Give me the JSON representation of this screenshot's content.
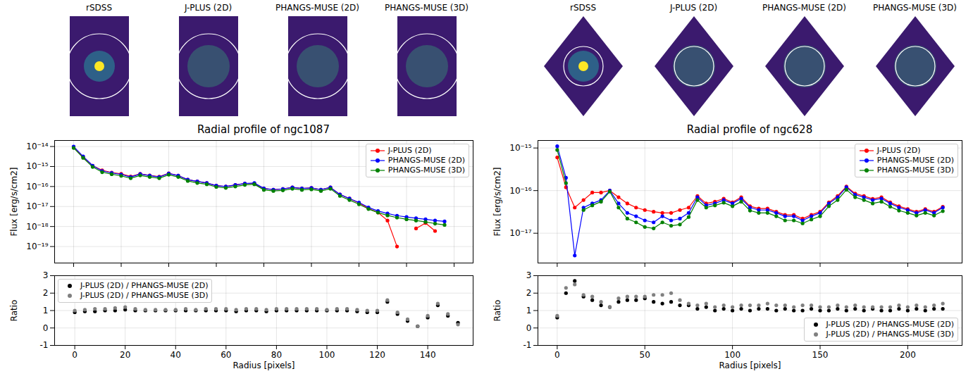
{
  "image_titles": [
    [
      "rSDSS",
      "J-PLUS (2D)",
      "PHANGS-MUSE (2D)",
      "PHANGS-MUSE (3D)"
    ],
    [
      "rSDSS",
      "J-PLUS (2D)",
      "PHANGS-MUSE (2D)",
      "PHANGS-MUSE (3D)"
    ]
  ],
  "chart_data": [
    {
      "type": "line",
      "title": "Radial profile of ngc1087",
      "ylabel": "Flux [erg/s/cm2]",
      "x": [
        0,
        4,
        8,
        12,
        16,
        20,
        24,
        28,
        32,
        36,
        40,
        44,
        48,
        52,
        56,
        60,
        64,
        68,
        72,
        76,
        80,
        84,
        88,
        92,
        96,
        100,
        104,
        108,
        112,
        116,
        120,
        124,
        128,
        132,
        136,
        140,
        144,
        148,
        152,
        156
      ],
      "xlim": [
        -8,
        168
      ],
      "xticks": [
        0,
        20,
        40,
        60,
        80,
        100,
        120,
        140,
        160
      ],
      "ylim": [
        1.5e-20,
        2e-14
      ],
      "yticks": [
        {
          "value": 1e-19,
          "label": "10⁻¹⁹"
        },
        {
          "value": 1e-18,
          "label": "10⁻¹⁸"
        },
        {
          "value": 1e-17,
          "label": "10⁻¹⁷"
        },
        {
          "value": 1e-16,
          "label": "10⁻¹⁶"
        },
        {
          "value": 1e-15,
          "label": "10⁻¹⁵"
        },
        {
          "value": 1e-14,
          "label": "10⁻¹⁴"
        }
      ],
      "log": "y",
      "grid": true,
      "legend": "upper right",
      "tick_labels": "y",
      "marker": "circle",
      "series": [
        {
          "name": "J-PLUS (2D)",
          "color": "#ff0000",
          "values": [
            9.5e-15,
            3e-15,
            1.1e-15,
            6.5e-16,
            5e-16,
            4.3e-16,
            3.2e-16,
            4.3e-16,
            3.6e-16,
            3.1e-16,
            4.6e-16,
            3.5e-16,
            2.2e-16,
            1.8e-16,
            1.5e-16,
            1.1e-16,
            1e-16,
            1.2e-16,
            1.4e-16,
            1.4e-16,
            8e-17,
            7e-17,
            7.5e-17,
            9e-17,
            8e-17,
            8.5e-17,
            7e-17,
            9e-17,
            4e-17,
            2.5e-17,
            1.5e-17,
            8e-18,
            5e-18,
            2e-18,
            1e-19,
            null,
            8e-19,
            1.5e-18,
            6e-19,
            null
          ]
        },
        {
          "name": "PHANGS-MUSE (2D)",
          "color": "#0000ff",
          "values": [
            1e-14,
            3.2e-15,
            1.1e-15,
            6e-16,
            4.8e-16,
            4e-16,
            3e-16,
            4.2e-16,
            3.5e-16,
            3e-16,
            4.5e-16,
            3.5e-16,
            2.2e-16,
            1.8e-16,
            1.5e-16,
            1.1e-16,
            1e-16,
            1.2e-16,
            1.4e-16,
            1.5e-16,
            8e-17,
            7e-17,
            7.5e-17,
            9e-17,
            8e-17,
            8.5e-17,
            7e-17,
            9e-17,
            4e-17,
            2.5e-17,
            1.6e-17,
            9e-18,
            6e-18,
            4.5e-18,
            3.5e-18,
            3e-18,
            2.6e-18,
            2.3e-18,
            2e-18,
            1.8e-18
          ]
        },
        {
          "name": "PHANGS-MUSE (3D)",
          "color": "#008000",
          "values": [
            8.5e-15,
            2.7e-15,
            9.5e-16,
            5.2e-16,
            4.1e-16,
            3.4e-16,
            2.6e-16,
            3.6e-16,
            3e-16,
            2.6e-16,
            3.9e-16,
            3e-16,
            1.9e-16,
            1.5e-16,
            1.3e-16,
            9.5e-17,
            8.5e-17,
            1e-16,
            1.2e-16,
            1.3e-16,
            6.8e-17,
            6e-17,
            6.4e-17,
            7.7e-17,
            6.8e-17,
            7.2e-17,
            6e-17,
            7.7e-17,
            3.4e-17,
            2.1e-17,
            1.3e-17,
            7.5e-18,
            5e-18,
            3.6e-18,
            2.8e-18,
            2.3e-18,
            2e-18,
            1.7e-18,
            1.4e-18,
            1.2e-18
          ]
        }
      ]
    },
    {
      "type": "scatter",
      "xlabel": "Radius [pixels]",
      "ylabel": "Ratio",
      "x": [
        0,
        4,
        8,
        12,
        16,
        20,
        24,
        28,
        32,
        36,
        40,
        44,
        48,
        52,
        56,
        60,
        64,
        68,
        72,
        76,
        80,
        84,
        88,
        92,
        96,
        100,
        104,
        108,
        112,
        116,
        120,
        124,
        128,
        132,
        136,
        140,
        144,
        148,
        152
      ],
      "xlim": [
        -8,
        158
      ],
      "xticks": [
        0,
        20,
        40,
        60,
        80,
        100,
        120,
        140
      ],
      "ylim": [
        -1,
        3
      ],
      "yticks": [
        -1,
        0,
        1,
        2,
        3
      ],
      "grid": true,
      "legend": "upper left",
      "marker": "circle",
      "series": [
        {
          "name": "J-PLUS (2D) / PHANGS-MUSE (2D)",
          "color": "#000000",
          "values": [
            0.9,
            0.95,
            0.95,
            1.0,
            1.0,
            1.05,
            1.0,
            1.0,
            1.0,
            1.0,
            1.0,
            1.0,
            1.0,
            1.0,
            1.0,
            1.0,
            0.95,
            1.0,
            1.0,
            0.95,
            1.0,
            1.0,
            1.0,
            1.0,
            1.0,
            1.0,
            1.0,
            1.0,
            0.95,
            0.9,
            0.9,
            1.5,
            0.8,
            0.4,
            0.1,
            0.6,
            1.3,
            0.7,
            0.3
          ]
        },
        {
          "name": "J-PLUS (2D) / PHANGS-MUSE (3D)",
          "color": "#808080",
          "values": [
            1.0,
            1.05,
            1.1,
            1.1,
            1.15,
            1.2,
            1.1,
            1.05,
            1.05,
            1.05,
            1.05,
            1.1,
            1.05,
            1.1,
            1.1,
            1.1,
            1.05,
            1.1,
            1.1,
            1.05,
            1.1,
            1.1,
            1.1,
            1.1,
            1.1,
            1.05,
            1.1,
            1.1,
            1.05,
            1.0,
            1.0,
            1.6,
            0.9,
            0.5,
            0.1,
            0.7,
            1.4,
            0.8,
            0.2
          ]
        }
      ]
    },
    {
      "type": "line",
      "title": "Radial profile of ngc628",
      "ylabel": "Flux [erg/s/cm2]",
      "x": [
        0,
        5,
        10,
        15,
        20,
        25,
        30,
        35,
        40,
        45,
        50,
        55,
        60,
        65,
        70,
        75,
        80,
        85,
        90,
        95,
        100,
        105,
        110,
        115,
        120,
        125,
        130,
        135,
        140,
        145,
        150,
        155,
        160,
        165,
        170,
        175,
        180,
        185,
        190,
        195,
        200,
        205,
        210,
        215,
        220
      ],
      "xlim": [
        -11,
        231
      ],
      "xticks": [
        0,
        50,
        100,
        150,
        200
      ],
      "ylim": [
        2e-18,
        1.5e-15
      ],
      "yticks": [
        {
          "value": 1e-17,
          "label": "10⁻¹⁷"
        },
        {
          "value": 1e-16,
          "label": "10⁻¹⁶"
        },
        {
          "value": 1e-15,
          "label": "10⁻¹⁵"
        }
      ],
      "log": "y",
      "grid": true,
      "legend": "upper right",
      "tick_labels": "y",
      "marker": "circle",
      "series": [
        {
          "name": "J-PLUS (2D)",
          "color": "#ff0000",
          "values": [
            6e-16,
            1.2e-16,
            4e-17,
            6e-17,
            9e-17,
            9e-17,
            1e-16,
            7e-17,
            5e-17,
            4e-17,
            3.5e-17,
            3.2e-17,
            3e-17,
            3e-17,
            3.5e-17,
            4e-17,
            7.5e-17,
            5e-17,
            5.5e-17,
            6.5e-17,
            5.3e-17,
            7e-17,
            4.3e-17,
            3.8e-17,
            3.8e-17,
            3.2e-17,
            2.7e-17,
            2.7e-17,
            2.2e-17,
            2.7e-17,
            3.2e-17,
            5.3e-17,
            7.5e-17,
            1.25e-16,
            8.5e-17,
            7.5e-17,
            6.4e-17,
            7e-17,
            5.3e-17,
            4.3e-17,
            3.7e-17,
            3.2e-17,
            3.7e-17,
            3.2e-17,
            4.2e-17
          ]
        },
        {
          "name": "PHANGS-MUSE (2D)",
          "color": "#0000ff",
          "values": [
            1.1e-15,
            2e-16,
            3e-18,
            4e-17,
            5e-17,
            6e-17,
            1e-16,
            5e-17,
            3e-17,
            2.5e-17,
            2e-17,
            1.8e-17,
            2.5e-17,
            2e-17,
            2.2e-17,
            3e-17,
            7e-17,
            4.5e-17,
            5e-17,
            6e-17,
            5e-17,
            6.5e-17,
            4e-17,
            3.5e-17,
            3.5e-17,
            3e-17,
            2.5e-17,
            2.5e-17,
            2e-17,
            2.5e-17,
            3e-17,
            5e-17,
            7e-17,
            1.2e-16,
            8e-17,
            7e-17,
            6e-17,
            6.5e-17,
            5e-17,
            4e-17,
            3.5e-17,
            3e-17,
            3.5e-17,
            3e-17,
            4e-17
          ]
        },
        {
          "name": "PHANGS-MUSE (3D)",
          "color": "#008000",
          "values": [
            9e-16,
            1.5e-16,
            null,
            3.5e-17,
            4.5e-17,
            5.5e-17,
            9.5e-17,
            4e-17,
            2.2e-17,
            1.8e-17,
            1.4e-17,
            1.3e-17,
            1.8e-17,
            1.5e-17,
            1.6e-17,
            2.4e-17,
            6e-17,
            4e-17,
            4.5e-17,
            5.2e-17,
            4.3e-17,
            5.5e-17,
            3.4e-17,
            3e-17,
            3e-17,
            2.5e-17,
            2e-17,
            2e-17,
            1.7e-17,
            2.1e-17,
            2.5e-17,
            4.3e-17,
            6e-17,
            1.05e-16,
            7e-17,
            6e-17,
            5e-17,
            5.5e-17,
            4.2e-17,
            3.4e-17,
            3e-17,
            2.6e-17,
            3e-17,
            2.6e-17,
            3.3e-17
          ]
        }
      ]
    },
    {
      "type": "scatter",
      "xlabel": "Radius [pixels]",
      "ylabel": "Ratio",
      "x": [
        0,
        5,
        10,
        15,
        20,
        25,
        30,
        35,
        40,
        45,
        50,
        55,
        60,
        65,
        70,
        75,
        80,
        85,
        90,
        95,
        100,
        105,
        110,
        115,
        120,
        125,
        130,
        135,
        140,
        145,
        150,
        155,
        160,
        165,
        170,
        175,
        180,
        185,
        190,
        195,
        200,
        205,
        210,
        215,
        220
      ],
      "xlim": [
        -11,
        231
      ],
      "xticks": [
        0,
        50,
        100,
        150,
        200
      ],
      "ylim": [
        -1,
        3
      ],
      "yticks": [
        -1,
        0,
        1,
        2,
        3
      ],
      "grid": true,
      "legend": "lower right",
      "marker": "circle",
      "series": [
        {
          "name": "J-PLUS (2D) / PHANGS-MUSE (2D)",
          "color": "#000000",
          "values": [
            0.6,
            2.0,
            2.7,
            1.8,
            1.6,
            1.3,
            1.2,
            1.5,
            1.6,
            1.6,
            1.7,
            1.5,
            1.4,
            1.5,
            1.3,
            1.3,
            1.1,
            1.2,
            1.0,
            1.1,
            1.0,
            1.1,
            1.0,
            1.1,
            1.1,
            1.0,
            1.1,
            1.0,
            1.0,
            1.1,
            1.0,
            1.0,
            1.1,
            1.0,
            1.1,
            1.0,
            1.1,
            1.0,
            1.0,
            1.1,
            1.0,
            1.1,
            1.0,
            1.1,
            1.1
          ]
        },
        {
          "name": "J-PLUS (2D) / PHANGS-MUSE (3D)",
          "color": "#808080",
          "values": [
            0.7,
            2.3,
            2.5,
            1.9,
            1.8,
            1.5,
            1.2,
            1.7,
            1.8,
            1.8,
            1.8,
            1.9,
            1.9,
            2.0,
            1.6,
            1.4,
            1.3,
            1.4,
            1.2,
            1.3,
            1.2,
            1.3,
            1.3,
            1.3,
            1.4,
            1.3,
            1.3,
            1.2,
            1.3,
            1.3,
            1.2,
            1.2,
            1.3,
            1.2,
            1.3,
            1.2,
            1.2,
            1.2,
            1.2,
            1.3,
            1.2,
            1.3,
            1.2,
            1.3,
            1.4
          ]
        }
      ]
    }
  ]
}
